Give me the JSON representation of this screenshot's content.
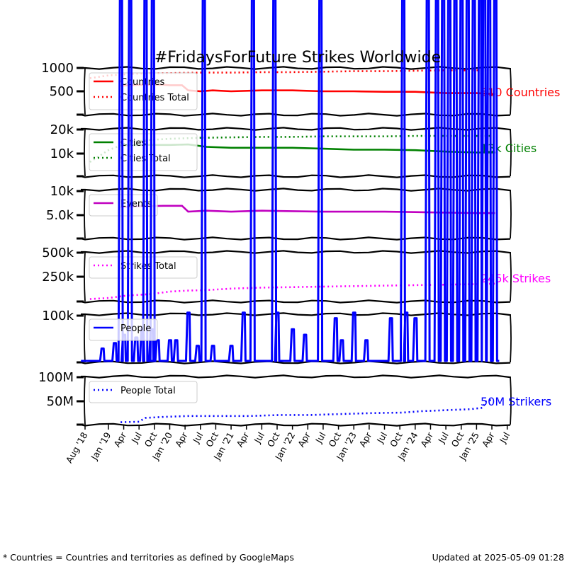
{
  "chart_data": {
    "type": "line",
    "title": "#FridaysForFuture Strikes Worldwide",
    "x_ticks": [
      "Aug '18",
      "Jan '19",
      "Apr",
      "Jul",
      "Oct",
      "Jan '20",
      "Apr",
      "Jul",
      "Oct",
      "Jan '21",
      "Apr",
      "Jul",
      "Oct",
      "Jan '22",
      "Apr",
      "Jul",
      "Oct",
      "Jan '23",
      "Apr",
      "Jul",
      "Oct",
      "Jan '24",
      "Apr",
      "Jul",
      "Oct",
      "Jan '25",
      "Apr",
      "Jul"
    ],
    "panels": [
      {
        "id": "countries",
        "y_ticks": [
          "1000",
          "500"
        ],
        "legend": [
          "Countries",
          "Countries Total"
        ],
        "end_label": "510 Countries",
        "color": "#ff0000",
        "series": [
          {
            "name": "Countries",
            "style": "solid",
            "x": [
              2019.2,
              2019.5,
              2019.9,
              2020.0,
              2020.2,
              2020.3,
              2020.5,
              2020.7,
              2021.0,
              2021.5,
              2022.0,
              2022.5,
              2023.0,
              2023.5,
              2024.0,
              2024.5,
              2025.0,
              2025.3
            ],
            "y": [
              0.62,
              0.64,
              0.64,
              0.63,
              0.63,
              0.52,
              0.5,
              0.52,
              0.5,
              0.52,
              0.52,
              0.5,
              0.5,
              0.49,
              0.49,
              0.46,
              0.46,
              0.44
            ]
          },
          {
            "name": "Countries Total",
            "style": "dotted",
            "x": [
              2018.7,
              2019.0,
              2019.5,
              2020.0,
              2020.5,
              2021.0,
              2021.5,
              2022.0,
              2022.5,
              2023.0,
              2023.5,
              2024.0,
              2024.5,
              2025.0,
              2025.3
            ],
            "y": [
              0.78,
              0.84,
              0.88,
              0.89,
              0.9,
              0.9,
              0.91,
              0.91,
              0.92,
              0.93,
              0.93,
              0.94,
              0.95,
              0.95,
              0.95
            ]
          }
        ]
      },
      {
        "id": "cities",
        "y_ticks": [
          "20k",
          "10k"
        ],
        "legend": [
          "Cities",
          "Cities Total"
        ],
        "end_label": "13k Cities",
        "color": "#008000",
        "series": [
          {
            "name": "Cities",
            "style": "solid",
            "x": [
              2019.2,
              2019.5,
              2020.0,
              2020.3,
              2020.6,
              2021.0,
              2021.5,
              2022.0,
              2022.5,
              2023.0,
              2023.5,
              2024.0,
              2024.5,
              2025.0,
              2025.3
            ],
            "y": [
              0.65,
              0.66,
              0.66,
              0.67,
              0.62,
              0.6,
              0.6,
              0.6,
              0.58,
              0.56,
              0.56,
              0.55,
              0.52,
              0.5,
              0.5
            ]
          },
          {
            "name": "Cities Total",
            "style": "dotted",
            "x": [
              2018.7,
              2019.0,
              2019.3,
              2019.6,
              2020.0,
              2020.5,
              2021.0,
              2021.5,
              2022.0,
              2022.5,
              2023.0,
              2023.5,
              2024.0,
              2024.5,
              2025.0,
              2025.3
            ],
            "y": [
              0.3,
              0.55,
              0.7,
              0.76,
              0.79,
              0.81,
              0.82,
              0.83,
              0.83,
              0.84,
              0.84,
              0.84,
              0.85,
              0.85,
              0.85,
              0.85
            ]
          }
        ]
      },
      {
        "id": "events",
        "y_ticks": [
          "10k",
          "5.0k"
        ],
        "legend": [
          "Events"
        ],
        "end_label": "",
        "color": "#c000c0",
        "series": [
          {
            "name": "Events",
            "style": "solid",
            "x": [
              2019.2,
              2019.5,
              2019.9,
              2020.2,
              2020.3,
              2020.6,
              2021.0,
              2021.5,
              2022.0,
              2022.5,
              2023.0,
              2023.5,
              2024.0,
              2024.5,
              2025.0,
              2025.3
            ],
            "y": [
              0.64,
              0.66,
              0.67,
              0.67,
              0.55,
              0.57,
              0.55,
              0.57,
              0.56,
              0.55,
              0.55,
              0.55,
              0.54,
              0.53,
              0.52,
              0.52
            ]
          }
        ]
      },
      {
        "id": "strikes",
        "y_ticks": [
          "500k",
          "250k",
          "100k"
        ],
        "legend": [
          "Strikes Total"
        ],
        "end_label": "245k Strikes",
        "color": "#ff00ff",
        "series": [
          {
            "name": "Strikes Total",
            "style": "dotted",
            "x": [
              2018.7,
              2019.0,
              2019.3,
              2019.7,
              2020.0,
              2020.3,
              2020.6,
              2021.0,
              2021.5,
              2022.0,
              2022.5,
              2023.0,
              2023.5,
              2024.0,
              2024.5,
              2025.0,
              2025.3
            ],
            "y": [
              0.05,
              0.07,
              0.12,
              0.15,
              0.2,
              0.22,
              0.23,
              0.26,
              0.28,
              0.29,
              0.3,
              0.31,
              0.32,
              0.33,
              0.34,
              0.35,
              0.36
            ]
          }
        ]
      },
      {
        "id": "people",
        "y_ticks": [],
        "legend": [
          "People"
        ],
        "end_label": "",
        "color": "#0000ff",
        "series": [
          {
            "name": "People",
            "style": "spikes",
            "x": [
              2018.9,
              2019.1,
              2019.2,
              2019.25,
              2019.35,
              2019.45,
              2019.55,
              2019.6,
              2019.7,
              2019.72,
              2019.8,
              2020.0,
              2020.1,
              2020.3,
              2020.45,
              2020.55,
              2020.7,
              2021.0,
              2021.2,
              2021.35,
              2021.7,
              2021.75,
              2022.0,
              2022.2,
              2022.45,
              2022.7,
              2022.8,
              2023.0,
              2023.2,
              2023.6,
              2023.8,
              2023.85,
              2024.0,
              2024.2,
              2024.35,
              2024.45,
              2024.55,
              2024.65,
              2024.75,
              2024.85,
              2024.95,
              2025.05,
              2025.12,
              2025.2,
              2025.3
            ],
            "y": [
              0.25,
              0.35,
              1.0,
              0.5,
              1.0,
              0.45,
              0.6,
              1.0,
              0.6,
              1.0,
              0.4,
              0.4,
              0.4,
              0.9,
              0.3,
              1.0,
              0.3,
              0.3,
              0.9,
              1.0,
              1.0,
              0.9,
              0.6,
              0.5,
              1.0,
              0.8,
              0.4,
              0.9,
              0.4,
              0.8,
              1.0,
              0.9,
              0.8,
              1.0,
              1.0,
              1.0,
              1.0,
              1.0,
              1.0,
              1.0,
              1.0,
              1.0,
              1.0,
              1.0,
              1.0
            ]
          }
        ]
      },
      {
        "id": "people_total",
        "y_ticks": [
          "100M",
          "50M"
        ],
        "legend": [
          "People Total"
        ],
        "end_label": "50M Strikers",
        "color": "#0000ff",
        "series": [
          {
            "name": "People Total",
            "style": "dotted",
            "x": [
              2019.2,
              2019.5,
              2019.6,
              2019.9,
              2020.3,
              2020.8,
              2021.3,
              2021.8,
              2022.3,
              2022.8,
              2023.3,
              2023.8,
              2024.1,
              2024.5,
              2024.9,
              2025.1,
              2025.15,
              2025.25
            ],
            "y": [
              0.05,
              0.06,
              0.14,
              0.16,
              0.18,
              0.18,
              0.18,
              0.2,
              0.2,
              0.22,
              0.24,
              0.25,
              0.28,
              0.3,
              0.32,
              0.35,
              0.48,
              0.52
            ]
          }
        ]
      }
    ]
  },
  "footer": {
    "note": "* Countries = Countries and territories as defined by GoogleMaps",
    "updated": "Updated at 2025-05-09 01:28"
  },
  "colors": {
    "countries": "#ff0000",
    "cities": "#008000",
    "events": "#c000c0",
    "strikes": "#ff00ff",
    "people": "#0000ff"
  }
}
